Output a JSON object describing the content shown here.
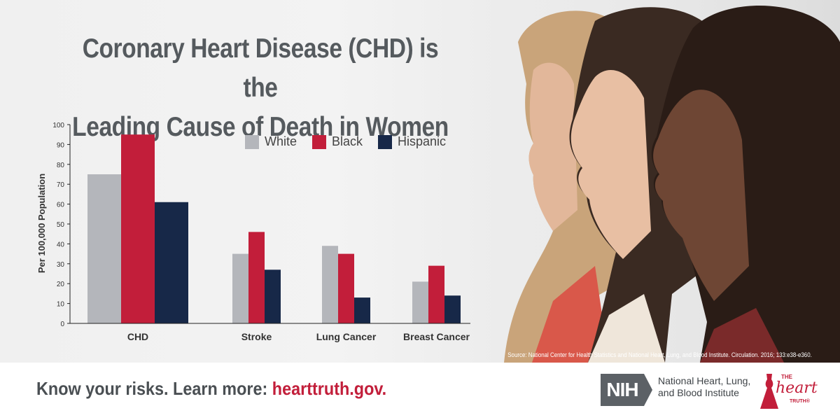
{
  "title": {
    "line1": "Coronary Heart Disease (CHD) is the",
    "line2": "Leading Cause of Death in Women"
  },
  "chart_data": {
    "type": "bar",
    "categories": [
      "CHD",
      "Stroke",
      "Lung Cancer",
      "Breast Cancer"
    ],
    "series": [
      {
        "name": "White",
        "values": [
          75,
          35,
          39,
          21
        ],
        "color": "#b4b6bb"
      },
      {
        "name": "Black",
        "values": [
          95,
          46,
          35,
          29
        ],
        "color": "#c21e3a"
      },
      {
        "name": "Hispanic",
        "values": [
          61,
          27,
          13,
          14
        ],
        "color": "#172848"
      }
    ],
    "ylabel": "Per 100,000 Population",
    "ylim": [
      0,
      100
    ],
    "yticks": [
      0,
      10,
      20,
      30,
      40,
      50,
      60,
      70,
      80,
      90,
      100
    ],
    "grid": false,
    "legend_position": "top-right"
  },
  "source": "Source: National Center for Health Statistics and National Heart, Lung, and Blood Institute. Circulation. 2016; 133:e38-e360.",
  "footer": {
    "tagline_text": "Know your risks. Learn more: ",
    "tagline_link": "hearttruth.gov.",
    "nih_logo": "NIH",
    "nih_name_line1": "National Heart, Lung,",
    "nih_name_line2": "and Blood Institute",
    "heart_truth_line1": "THE",
    "heart_truth_line2": "heart",
    "heart_truth_line3": "TRUTH®"
  },
  "colors": {
    "accent_red": "#c21e3a",
    "navy": "#172848",
    "gray": "#b4b6bb",
    "title_gray": "#555a5e"
  }
}
